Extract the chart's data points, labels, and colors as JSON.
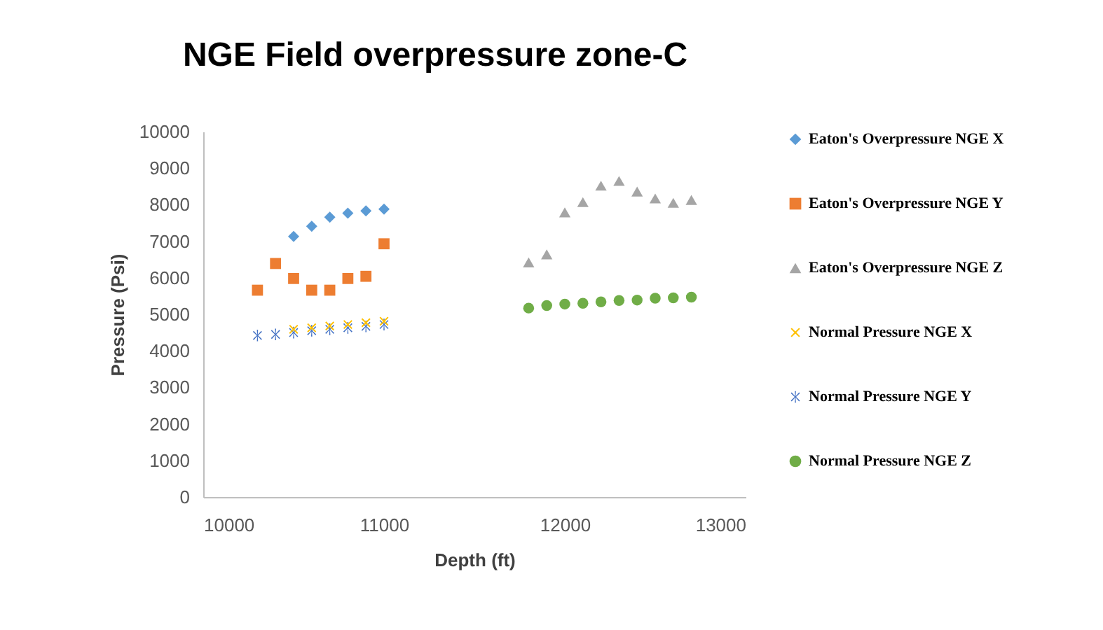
{
  "chart_data": {
    "type": "scatter",
    "title": "NGE Field overpressure zone-C",
    "xlabel": "Depth (ft)",
    "ylabel": "Pressure (Psi)",
    "xlim": [
      10000,
      13000
    ],
    "xticks": [
      10000,
      11000,
      12000,
      13000
    ],
    "ylim": [
      0,
      10000
    ],
    "yticks": [
      0,
      1000,
      2000,
      3000,
      4000,
      5000,
      6000,
      7000,
      8000,
      9000,
      10000
    ],
    "grid": false,
    "legend": "right",
    "series": [
      {
        "name": "Eaton's Overpressure NGE X",
        "color": "#5b9bd5",
        "marker": "diamond",
        "x": [
          10500,
          10600,
          10700,
          10800,
          10900,
          11000
        ],
        "values": [
          7130,
          7410,
          7660,
          7770,
          7830,
          7880
        ]
      },
      {
        "name": "Eaton's Overpressure NGE Y",
        "color": "#ed7d31",
        "marker": "square",
        "x": [
          10300,
          10400,
          10500,
          10600,
          10700,
          10800,
          10900,
          11000
        ],
        "values": [
          5660,
          6390,
          5980,
          5660,
          5660,
          5980,
          6040,
          6930
        ]
      },
      {
        "name": "Eaton's Overpressure NGE Z",
        "color": "#a5a5a5",
        "marker": "triangle",
        "x": [
          11800,
          11900,
          12000,
          12100,
          12200,
          12300,
          12400,
          12500,
          12600,
          12700
        ],
        "values": [
          6420,
          6640,
          7790,
          8070,
          8520,
          8650,
          8360,
          8170,
          8050,
          8130
        ]
      },
      {
        "name": "Normal Pressure NGE X",
        "color": "#ffc000",
        "marker": "cross",
        "x": [
          10500,
          10600,
          10700,
          10800,
          10900,
          11000
        ],
        "values": [
          4590,
          4630,
          4680,
          4720,
          4770,
          4810
        ]
      },
      {
        "name": "Normal Pressure NGE Y",
        "color": "#4472c4",
        "marker": "star",
        "x": [
          10300,
          10400,
          10500,
          10600,
          10700,
          10800,
          10900,
          11000
        ],
        "values": [
          4420,
          4450,
          4500,
          4550,
          4590,
          4630,
          4670,
          4720
        ]
      },
      {
        "name": "Normal Pressure NGE Z",
        "color": "#70ad47",
        "marker": "circle",
        "x": [
          11800,
          11900,
          12000,
          12100,
          12200,
          12300,
          12400,
          12500,
          12600,
          12700
        ],
        "values": [
          5170,
          5240,
          5280,
          5300,
          5340,
          5380,
          5390,
          5440,
          5450,
          5470
        ]
      }
    ]
  }
}
